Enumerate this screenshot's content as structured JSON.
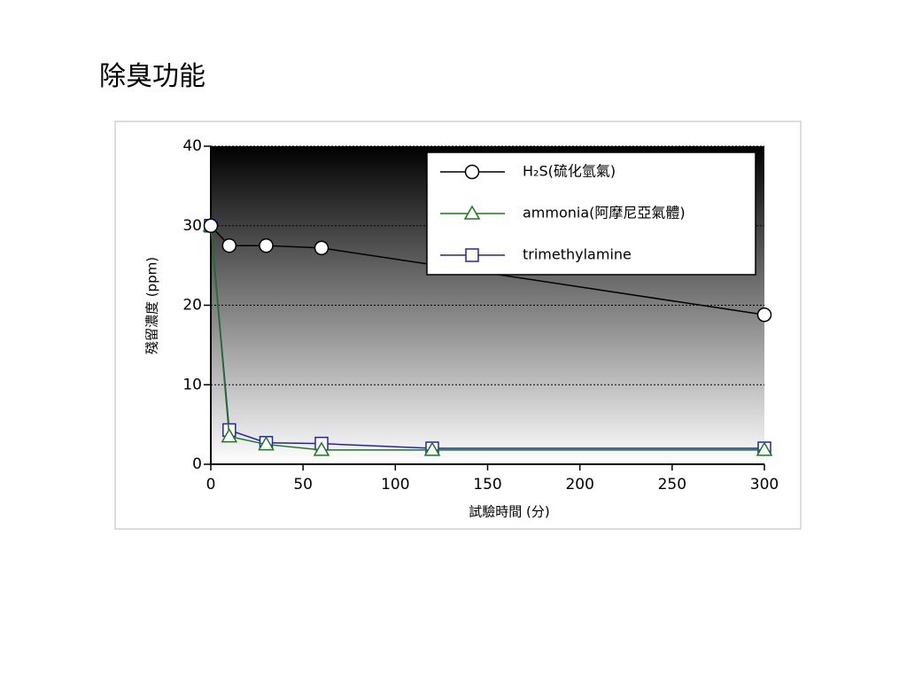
{
  "slide_title": "除臭功能",
  "chart_data": {
    "type": "line",
    "xlabel": "試驗時間 (分)",
    "ylabel": "殘留濃度 (ppm)",
    "xlim": [
      0,
      300
    ],
    "xticks": [
      0,
      50,
      100,
      150,
      200,
      250,
      300
    ],
    "ylim": [
      0,
      40
    ],
    "yticks": [
      0,
      10,
      20,
      30,
      40
    ],
    "grid": true,
    "legend": "upper right",
    "series": [
      {
        "name": "H₂S(硫化氫氣)",
        "color": "#000000",
        "marker": "circle",
        "x": [
          0,
          10,
          30,
          60,
          300
        ],
        "values": [
          30,
          27.5,
          27.5,
          27.2,
          18.8
        ]
      },
      {
        "name": "ammonia(阿摩尼亞氣體)",
        "color": "#1a7a1a",
        "marker": "triangle",
        "x": [
          0,
          10,
          30,
          60,
          120,
          300
        ],
        "values": [
          30,
          3.5,
          2.5,
          1.8,
          1.8,
          1.8
        ]
      },
      {
        "name": "trimethylamine",
        "color": "#2020c0",
        "marker": "square",
        "x": [
          0,
          10,
          30,
          60,
          120,
          300
        ],
        "values": [
          30,
          4.3,
          2.7,
          2.6,
          2.0,
          2.0
        ]
      }
    ]
  }
}
